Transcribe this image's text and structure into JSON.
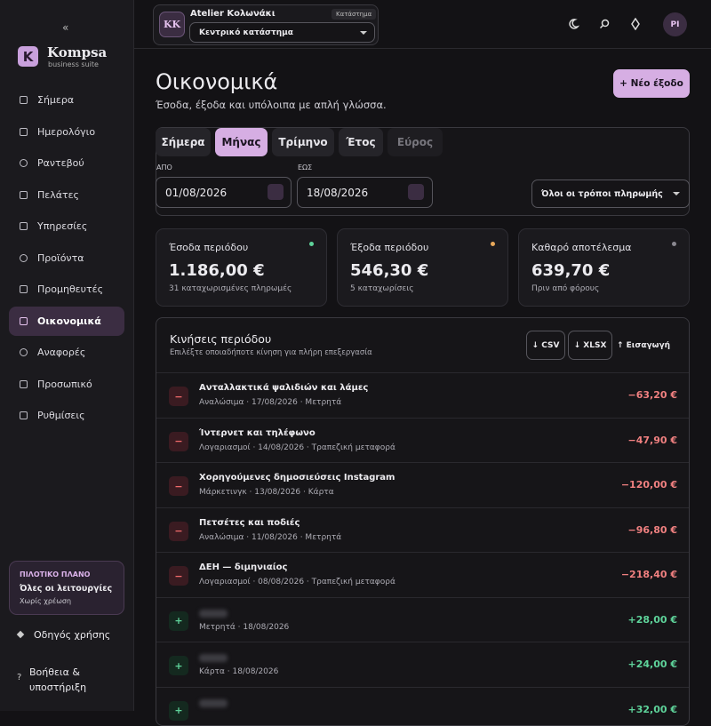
{
  "sidebar": {
    "collapse": "«",
    "logo_letter": "K",
    "brand": "Kompsa",
    "tagline": "business suite",
    "nav": [
      "Σήμερα",
      "Ημερολόγιο",
      "Ραντεβού",
      "Πελάτες",
      "Υπηρεσίες",
      "Προϊόντα",
      "Προμηθευτές",
      "Οικονομικά",
      "Αναφορές",
      "Προσωπικό",
      "Ρυθμίσεις"
    ],
    "active_nav": 7,
    "plan": {
      "label": "ΠΙΛΟΤΙΚΟ ΠΛΑΝΟ",
      "title": "Όλες οι λειτουργίες",
      "note": "Χωρίς χρέωση"
    },
    "guide": "Οδηγός χρήσης",
    "help": "Βοήθεια & υποστήριξη"
  },
  "topbar": {
    "store_initials": "KK",
    "store_name": "Atelier Κολωνάκι",
    "store_badge": "Κατάστημα",
    "store_select": "Κεντρικό κατάστημα",
    "avatar": "PI"
  },
  "header": {
    "title": "Οικονομικά",
    "subtitle": "Έσοδα, έξοδα και υπόλοιπα με απλή γλώσσα.",
    "new_button": "+ Νέο έξοδο"
  },
  "filters": {
    "tabs": [
      "Σήμερα",
      "Μήνας",
      "Τρίμηνο",
      "Έτος",
      "Εύρος"
    ],
    "active_tab": 1,
    "disabled_tab": 4,
    "from_label": "ΑΠΟ",
    "from": "01/08/2026",
    "to_label": "ΕΩΣ",
    "to": "18/08/2026",
    "payment": "Όλοι οι τρόποι πληρωμής"
  },
  "cards": [
    {
      "title": "Έσοδα περιόδου",
      "value": "1.186,00 €",
      "note": "31 καταχωρισμένες πληρωμές",
      "dot": "#5ed39a"
    },
    {
      "title": "Έξοδα περιόδου",
      "value": "546,30 €",
      "note": "5 καταχωρίσεις",
      "dot": "#e8a85a"
    },
    {
      "title": "Καθαρό αποτέλεσμα",
      "value": "639,70 €",
      "note": "Πριν από φόρους",
      "dot": "#8a8890"
    }
  ],
  "transactions": {
    "title": "Κινήσεις περιόδου",
    "subtitle": "Επιλέξτε οποιαδήποτε κίνηση για πλήρη επεξεργασία",
    "buttons": [
      "↓ CSV",
      "↓ XLSX",
      "↑ Εισαγωγή"
    ],
    "rows": [
      {
        "icon": "−",
        "name": "Ανταλλακτικά ψαλιδιών και λάμες",
        "meta": "Αναλώσιμα · 17/08/2026 · Μετρητά",
        "amount": "−63,20 €"
      },
      {
        "icon": "−",
        "name": "Ίντερνετ και τηλέφωνο",
        "meta": "Λογαριασμοί · 14/08/2026 · Τραπεζική μεταφορά",
        "amount": "−47,90 €"
      },
      {
        "icon": "−",
        "name": "Χορηγούμενες δημοσιεύσεις Instagram",
        "meta": "Μάρκετινγκ · 13/08/2026 · Κάρτα",
        "amount": "−120,00 €"
      },
      {
        "icon": "−",
        "name": "Πετσέτες και ποδιές",
        "meta": "Αναλώσιμα · 11/08/2026 · Μετρητά",
        "amount": "−96,80 €"
      },
      {
        "icon": "−",
        "name": "ΔΕΗ — διμηνιαίος",
        "meta": "Λογαριασμοί · 08/08/2026 · Τραπεζική μεταφορά",
        "amount": "−218,40 €"
      },
      {
        "icon": "+",
        "meta": "Μετρητά · 18/08/2026",
        "amount": "+28,00 €"
      },
      {
        "icon": "+",
        "meta": "Κάρτα · 18/08/2026",
        "amount": "+24,00 €"
      },
      {
        "icon": "+",
        "amount": "+32,00 €"
      }
    ]
  }
}
